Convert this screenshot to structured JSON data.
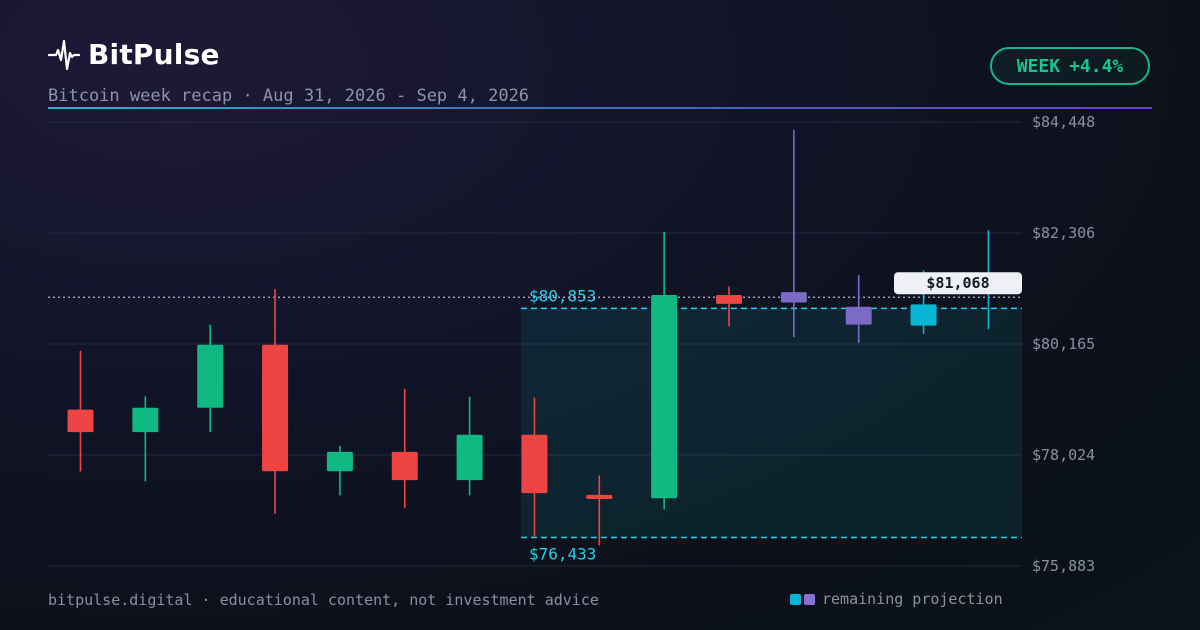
{
  "brand": {
    "name": "BitPulse",
    "icon": "heartbeat-pulse-icon"
  },
  "subtitle": "Bitcoin week recap · Aug 31, 2026 - Sep 4, 2026",
  "badge": {
    "label": "WEEK",
    "value": "+4.4%"
  },
  "footer": {
    "text": "bitpulse.digital · educational content, not investment advice"
  },
  "legend": {
    "label": "remaining projection",
    "colors": [
      "#06b6d4",
      "#8b6fd1"
    ]
  },
  "colors": {
    "up": "#10b981",
    "down": "#ef4444",
    "projection_cyan": "#06b6d4",
    "projection_purple": "#7c6bc4",
    "range": "#22d3ee",
    "accent": "#19c28f"
  },
  "chart_data": {
    "type": "candlestick",
    "y_ticks": [
      "$84,448",
      "$82,306",
      "$80,165",
      "$78,024",
      "$75,883"
    ],
    "ylim": [
      75883,
      84448
    ],
    "current_price": {
      "value": 81068,
      "label": "$81,068"
    },
    "range": {
      "high": 80853,
      "low": 76433,
      "high_label": "$80,853",
      "low_label": "$76,433"
    },
    "grid": true,
    "candles": [
      {
        "open": 78900,
        "high": 80035,
        "low": 77705,
        "close": 78465,
        "kind": "actual"
      },
      {
        "open": 78465,
        "high": 79155,
        "low": 77515,
        "close": 78935,
        "kind": "actual"
      },
      {
        "open": 78935,
        "high": 80540,
        "low": 78465,
        "close": 80150,
        "kind": "actual"
      },
      {
        "open": 80150,
        "high": 81225,
        "low": 76890,
        "close": 77710,
        "kind": "actual"
      },
      {
        "open": 77710,
        "high": 78200,
        "low": 77245,
        "close": 78085,
        "kind": "actual"
      },
      {
        "open": 78085,
        "high": 79300,
        "low": 77000,
        "close": 77540,
        "kind": "actual"
      },
      {
        "open": 77540,
        "high": 79150,
        "low": 77245,
        "close": 78415,
        "kind": "actual"
      },
      {
        "open": 78415,
        "high": 79130,
        "low": 76450,
        "close": 77290,
        "kind": "actual"
      },
      {
        "open": 77255,
        "high": 77630,
        "low": 76280,
        "close": 77175,
        "kind": "actual"
      },
      {
        "open": 77190,
        "high": 82325,
        "low": 76975,
        "close": 81110,
        "kind": "actual"
      },
      {
        "open": 81110,
        "high": 81275,
        "low": 80505,
        "close": 80940,
        "kind": "actual"
      },
      {
        "open": 80965,
        "high": 84295,
        "low": 80300,
        "close": 81165,
        "kind": "projection"
      },
      {
        "open": 80885,
        "high": 81495,
        "low": 80185,
        "close": 80540,
        "kind": "projection"
      },
      {
        "open": 80930,
        "high": 81585,
        "low": 80360,
        "close": 80520,
        "kind": "projection"
      },
      {
        "open": 81415,
        "high": 82360,
        "low": 80450,
        "close": 81415,
        "kind": "projection"
      }
    ]
  }
}
